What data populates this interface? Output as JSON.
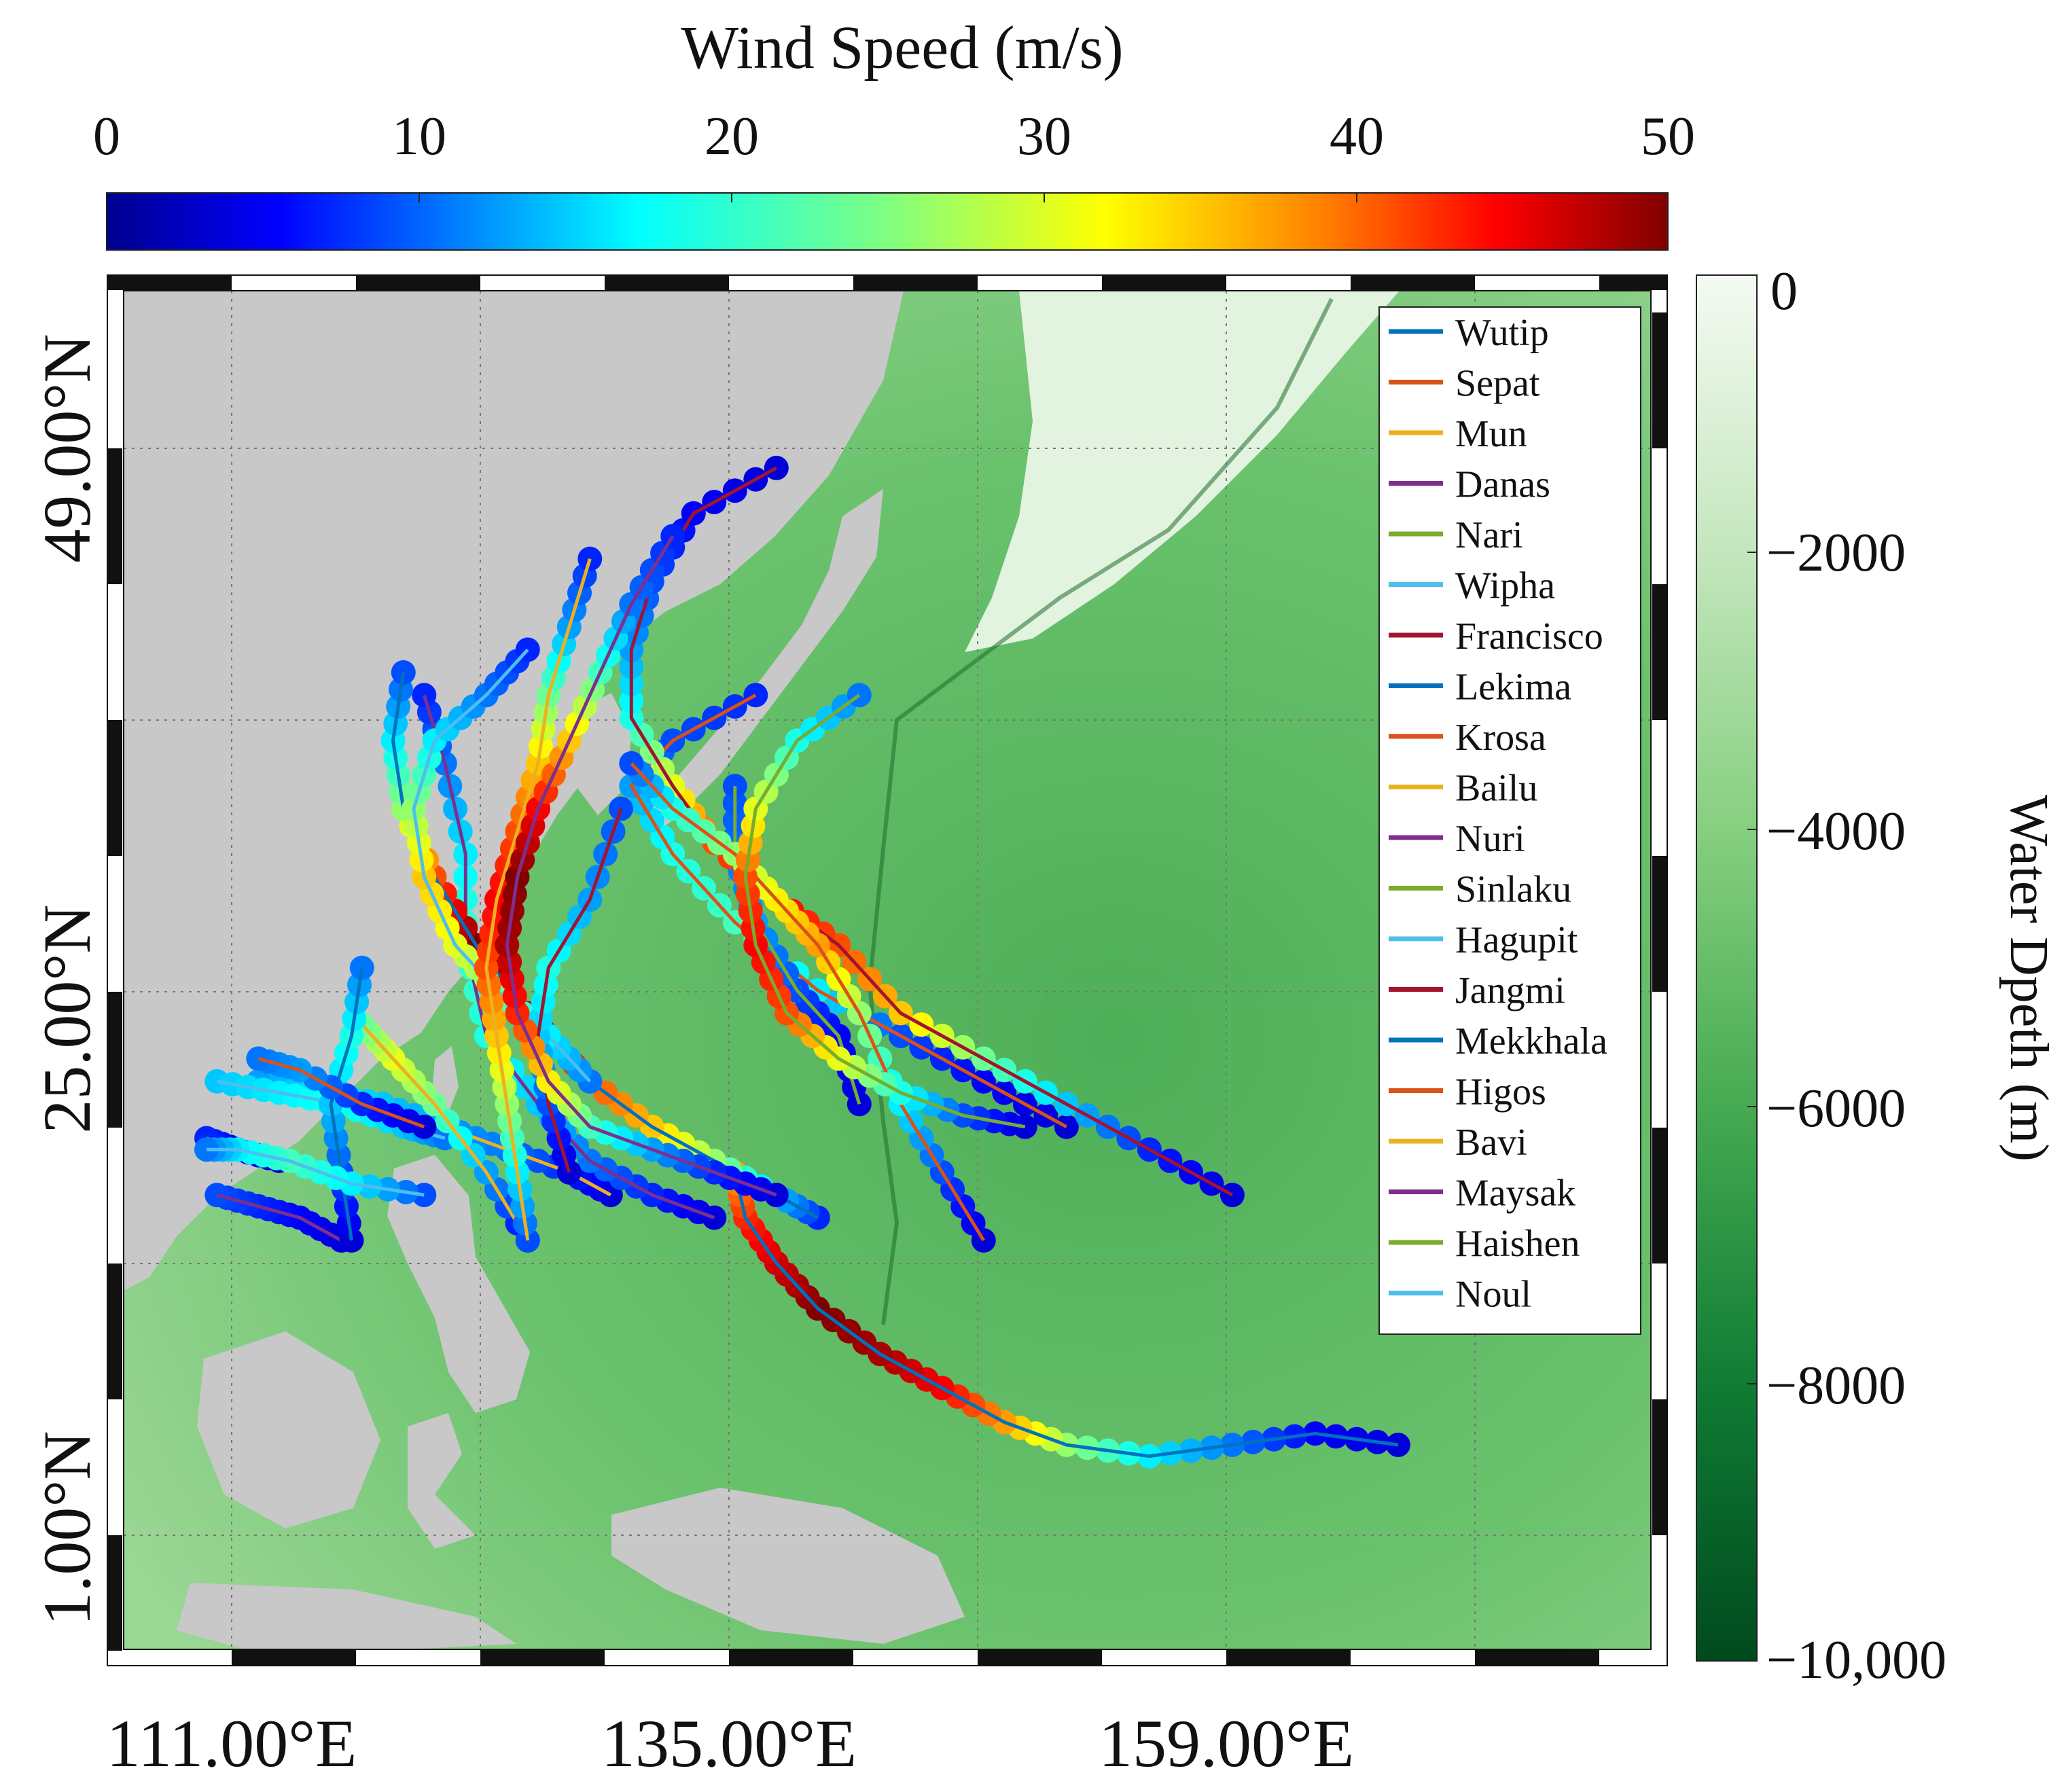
{
  "colorbar": {
    "title": "Wind Speed (m/s)",
    "ticks": [
      "0",
      "10",
      "20",
      "30",
      "40",
      "50"
    ],
    "colormap": [
      "#00008f",
      "#0000ff",
      "#0080ff",
      "#00ffff",
      "#80ff80",
      "#ffff00",
      "#ff8000",
      "#ff0000",
      "#800000"
    ]
  },
  "depth_bar": {
    "title": "Water Dpeth (m)",
    "ticks": [
      "0",
      "−2000",
      "−4000",
      "−6000",
      "−8000",
      "−10,000"
    ],
    "colors": [
      "#f2faf0",
      "#bfe3b8",
      "#7fcc7a",
      "#44a850",
      "#107d34",
      "#004a1e"
    ]
  },
  "map": {
    "lat_labels": [
      "49.00°N",
      "25.00°N",
      "1.00°N"
    ],
    "lon_labels": [
      "111.00°E",
      "135.00°E",
      "159.00°E"
    ],
    "land_color": "#c8c8c8",
    "ocean_color": "#6ec46e"
  },
  "legend": {
    "entries": [
      {
        "name": "Wutip",
        "color": "#0072bd"
      },
      {
        "name": "Sepat",
        "color": "#d95319"
      },
      {
        "name": "Mun",
        "color": "#edb120"
      },
      {
        "name": "Danas",
        "color": "#7e2f8e"
      },
      {
        "name": "Nari",
        "color": "#77ac30"
      },
      {
        "name": "Wipha",
        "color": "#4dbeee"
      },
      {
        "name": "Francisco",
        "color": "#a2142f"
      },
      {
        "name": "Lekima",
        "color": "#0072bd"
      },
      {
        "name": "Krosa",
        "color": "#d95319"
      },
      {
        "name": "Bailu",
        "color": "#edb120"
      },
      {
        "name": "Nuri",
        "color": "#7e2f8e"
      },
      {
        "name": "Sinlaku",
        "color": "#77ac30"
      },
      {
        "name": "Hagupit",
        "color": "#4dbeee"
      },
      {
        "name": "Jangmi",
        "color": "#a2142f"
      },
      {
        "name": "Mekkhala",
        "color": "#0072bd"
      },
      {
        "name": "Higos",
        "color": "#d95319"
      },
      {
        "name": "Bavi",
        "color": "#edb120"
      },
      {
        "name": "Maysak",
        "color": "#7e2f8e"
      },
      {
        "name": "Haishen",
        "color": "#77ac30"
      },
      {
        "name": "Noul",
        "color": "#4dbeee"
      }
    ]
  },
  "tracks": [
    {
      "name": "Wutip",
      "color": "#0072bd",
      "pts": [
        [
          168,
          5,
          4
        ],
        [
          164,
          5.5,
          6
        ],
        [
          160,
          5,
          12
        ],
        [
          156,
          4.5,
          18
        ],
        [
          152,
          5,
          26
        ],
        [
          149,
          6,
          36
        ],
        [
          146,
          7.5,
          44
        ],
        [
          143,
          9,
          48
        ],
        [
          140,
          11,
          50
        ],
        [
          138,
          13,
          46
        ],
        [
          136.5,
          15,
          42
        ],
        [
          136,
          17,
          36
        ]
      ]
    },
    {
      "name": "Sepat",
      "color": "#d95319",
      "pts": [
        [
          152,
          19,
          4
        ],
        [
          148,
          21,
          6
        ],
        [
          144,
          23,
          10
        ],
        [
          140,
          25,
          18
        ],
        [
          136,
          28,
          22
        ],
        [
          133,
          31,
          20
        ],
        [
          131,
          34,
          14
        ],
        [
          133,
          36,
          10
        ],
        [
          137,
          38,
          8
        ]
      ]
    },
    {
      "name": "Mun",
      "color": "#edb120",
      "pts": [
        [
          130,
          16,
          4
        ],
        [
          128,
          17,
          8
        ],
        [
          125,
          18,
          12
        ],
        [
          122,
          19,
          14
        ],
        [
          119,
          20,
          16
        ],
        [
          116,
          20.5,
          18
        ],
        [
          113,
          21,
          14
        ]
      ]
    },
    {
      "name": "Danas",
      "color": "#7e2f8e",
      "pts": [
        [
          135,
          15,
          4
        ],
        [
          132,
          16,
          8
        ],
        [
          129,
          17.5,
          12
        ],
        [
          126.5,
          20,
          16
        ],
        [
          124,
          23,
          20
        ],
        [
          123,
          27,
          22
        ],
        [
          123,
          31,
          18
        ],
        [
          122,
          35,
          12
        ],
        [
          121,
          38,
          8
        ]
      ]
    },
    {
      "name": "Nari",
      "color": "#77ac30",
      "pts": [
        [
          142,
          20,
          4
        ],
        [
          141,
          23,
          6
        ],
        [
          139,
          25,
          10
        ],
        [
          137,
          28,
          14
        ],
        [
          136,
          31,
          12
        ],
        [
          136,
          34,
          10
        ]
      ]
    },
    {
      "name": "Wipha",
      "color": "#4dbeee",
      "pts": [
        [
          111,
          21,
          16
        ],
        [
          114,
          20.5,
          18
        ],
        [
          117,
          20,
          20
        ],
        [
          120,
          19,
          16
        ],
        [
          122,
          18.5,
          12
        ]
      ]
    },
    {
      "name": "Francisco",
      "color": "#a2142f",
      "pts": [
        [
          160,
          16,
          4
        ],
        [
          156,
          18,
          8
        ],
        [
          152,
          20,
          16
        ],
        [
          148,
          22,
          24
        ],
        [
          144,
          24,
          34
        ],
        [
          141,
          27,
          40
        ],
        [
          138,
          29,
          44
        ],
        [
          135,
          31.5,
          40
        ],
        [
          133,
          34,
          30
        ],
        [
          131,
          37,
          20
        ],
        [
          131,
          40,
          14
        ],
        [
          132,
          43,
          10
        ],
        [
          134,
          46,
          6
        ],
        [
          138,
          48,
          4
        ]
      ]
    },
    {
      "name": "Lekima",
      "color": "#0072bd",
      "pts": [
        [
          140,
          15,
          8
        ],
        [
          138,
          16,
          16
        ],
        [
          135,
          17.5,
          26
        ],
        [
          132,
          19,
          34
        ],
        [
          129,
          21,
          40
        ],
        [
          126,
          24,
          46
        ],
        [
          123.5,
          27,
          50
        ],
        [
          121.5,
          30,
          40
        ],
        [
          120,
          33,
          26
        ],
        [
          119.5,
          36,
          18
        ],
        [
          120,
          39,
          10
        ]
      ]
    },
    {
      "name": "Krosa",
      "color": "#d95319",
      "pts": [
        [
          148,
          14,
          4
        ],
        [
          146,
          17,
          10
        ],
        [
          144,
          20,
          18
        ],
        [
          142,
          24,
          26
        ],
        [
          140,
          27,
          36
        ],
        [
          138,
          29,
          32
        ],
        [
          136,
          31,
          26
        ],
        [
          133,
          33,
          20
        ],
        [
          131,
          35,
          10
        ]
      ]
    },
    {
      "name": "Bailu",
      "color": "#edb120",
      "pts": [
        [
          126,
          14,
          6
        ],
        [
          124,
          17,
          14
        ],
        [
          121.5,
          20,
          24
        ],
        [
          119.5,
          22,
          30
        ],
        [
          118,
          23.5,
          24
        ]
      ]
    },
    {
      "name": "Nuri",
      "color": "#7e2f8e",
      "pts": [
        [
          117,
          14,
          4
        ],
        [
          115,
          15,
          6
        ],
        [
          113,
          15.5,
          8
        ],
        [
          111,
          16,
          10
        ]
      ]
    },
    {
      "name": "Sinlaku",
      "color": "#77ac30",
      "pts": [
        [
          114,
          17.5,
          4
        ],
        [
          112,
          18,
          6
        ],
        [
          110.5,
          18.5,
          8
        ]
      ]
    },
    {
      "name": "Hagupit",
      "color": "#4dbeee",
      "pts": [
        [
          129,
          21,
          12
        ],
        [
          127,
          23,
          18
        ],
        [
          124.5,
          25,
          24
        ],
        [
          122.5,
          27,
          30
        ],
        [
          121,
          30,
          34
        ],
        [
          120.5,
          33,
          26
        ],
        [
          121.5,
          36,
          18
        ],
        [
          124,
          38,
          12
        ],
        [
          126,
          40,
          8
        ]
      ]
    },
    {
      "name": "Jangmi",
      "color": "#a2142f",
      "pts": [
        [
          128,
          17,
          4
        ],
        [
          127,
          20,
          10
        ],
        [
          126.5,
          23,
          16
        ],
        [
          127,
          26,
          20
        ],
        [
          129,
          29,
          14
        ],
        [
          130.5,
          33,
          10
        ]
      ]
    },
    {
      "name": "Mekkhala",
      "color": "#0072bd",
      "pts": [
        [
          117.5,
          14,
          4
        ],
        [
          117,
          17,
          10
        ],
        [
          116.5,
          20,
          16
        ],
        [
          117.5,
          23,
          20
        ],
        [
          118,
          26,
          12
        ]
      ]
    },
    {
      "name": "Higos",
      "color": "#d95319",
      "pts": [
        [
          121,
          19,
          4
        ],
        [
          118,
          20,
          8
        ],
        [
          115,
          21.5,
          14
        ],
        [
          113,
          22,
          12
        ]
      ]
    },
    {
      "name": "Bavi",
      "color": "#edb120",
      "pts": [
        [
          126,
          14,
          10
        ],
        [
          125.5,
          17,
          18
        ],
        [
          125,
          20,
          26
        ],
        [
          124.5,
          23,
          34
        ],
        [
          124,
          26,
          40
        ],
        [
          124.5,
          29,
          44
        ],
        [
          125.5,
          32,
          40
        ],
        [
          126.5,
          35,
          34
        ],
        [
          127,
          38,
          24
        ],
        [
          128,
          41,
          14
        ],
        [
          129,
          44,
          8
        ]
      ]
    },
    {
      "name": "Maysak",
      "color": "#7e2f8e",
      "pts": [
        [
          138,
          16,
          4
        ],
        [
          135,
          17,
          8
        ],
        [
          132,
          18,
          14
        ],
        [
          129,
          19,
          22
        ],
        [
          127,
          21,
          32
        ],
        [
          125.5,
          24,
          42
        ],
        [
          125,
          27,
          48
        ],
        [
          125.5,
          30,
          50
        ],
        [
          126.5,
          33,
          44
        ],
        [
          128,
          36,
          34
        ],
        [
          129.5,
          39,
          22
        ],
        [
          131,
          42,
          12
        ],
        [
          133,
          45,
          8
        ]
      ]
    },
    {
      "name": "Haishen",
      "color": "#77ac30",
      "pts": [
        [
          150,
          19,
          4
        ],
        [
          147,
          19.5,
          10
        ],
        [
          144,
          20.5,
          20
        ],
        [
          141,
          22,
          30
        ],
        [
          138.5,
          24,
          40
        ],
        [
          137,
          27,
          44
        ],
        [
          136.5,
          30,
          40
        ],
        [
          137,
          33,
          30
        ],
        [
          139,
          36,
          20
        ],
        [
          142,
          38,
          12
        ]
      ]
    },
    {
      "name": "Noul",
      "color": "#4dbeee",
      "pts": [
        [
          121,
          16,
          10
        ],
        [
          117.5,
          16.5,
          18
        ],
        [
          114.5,
          17.5,
          22
        ],
        [
          112,
          18,
          18
        ],
        [
          110.5,
          18,
          12
        ]
      ]
    }
  ]
}
